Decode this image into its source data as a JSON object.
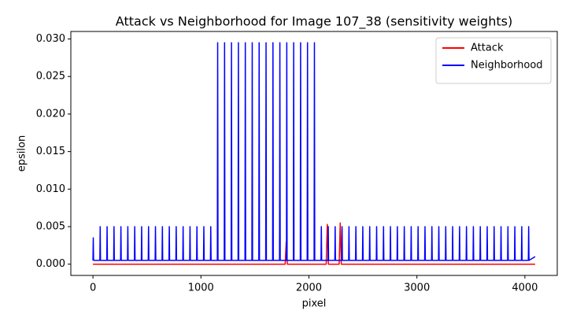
{
  "chart_data": {
    "type": "line",
    "title": "Attack vs Neighborhood for Image 107_38 (sensitivity weights)",
    "x_label": "pixel",
    "y_label": "epsilon",
    "xlim": [
      -204.75,
      4299.75
    ],
    "ylim": [
      -0.0015,
      0.031
    ],
    "xticks": [
      0,
      1000,
      2000,
      3000,
      4000
    ],
    "yticks": [
      {
        "value": 0,
        "label": "0.000"
      },
      {
        "value": 0.005,
        "label": "0.005"
      },
      {
        "value": 0.01,
        "label": "0.010"
      },
      {
        "value": 0.015,
        "label": "0.015"
      },
      {
        "value": 0.02,
        "label": "0.020"
      },
      {
        "value": 0.025,
        "label": "0.025"
      },
      {
        "value": 0.03,
        "label": "0.030"
      }
    ],
    "grid": false,
    "legend": "upper right",
    "series": [
      {
        "name": "Attack",
        "color": "#ff0000",
        "x": [
          0,
          1780,
          1790,
          1800,
          2160,
          2170,
          2180,
          2280,
          2290,
          2300,
          4095
        ],
        "values": [
          0,
          0,
          0.003,
          0,
          0,
          0.0053,
          0,
          0,
          0.0055,
          0,
          0
        ]
      },
      {
        "name": "Neighborhood",
        "color": "#0000ff",
        "x": [
          0,
          3,
          6,
          64,
          67,
          70,
          128,
          131,
          134,
          192,
          195,
          198,
          256,
          259,
          262,
          320,
          323,
          326,
          384,
          387,
          390,
          448,
          451,
          454,
          512,
          515,
          518,
          576,
          579,
          582,
          640,
          643,
          646,
          704,
          707,
          710,
          768,
          771,
          774,
          832,
          835,
          838,
          896,
          899,
          902,
          960,
          963,
          966,
          1024,
          1027,
          1030,
          1088,
          1091,
          1094,
          1152,
          1155,
          1158,
          1216,
          1219,
          1222,
          1280,
          1283,
          1286,
          1344,
          1347,
          1350,
          1408,
          1411,
          1414,
          1472,
          1475,
          1478,
          1536,
          1539,
          1542,
          1600,
          1603,
          1606,
          1664,
          1667,
          1670,
          1728,
          1731,
          1734,
          1792,
          1795,
          1798,
          1856,
          1859,
          1862,
          1920,
          1923,
          1926,
          1984,
          1987,
          1990,
          2048,
          2051,
          2054,
          2112,
          2115,
          2118,
          2176,
          2179,
          2182,
          2240,
          2243,
          2246,
          2304,
          2307,
          2310,
          2368,
          2371,
          2374,
          2432,
          2435,
          2438,
          2496,
          2499,
          2502,
          2560,
          2563,
          2566,
          2624,
          2627,
          2630,
          2688,
          2691,
          2694,
          2752,
          2755,
          2758,
          2816,
          2819,
          2822,
          2880,
          2883,
          2886,
          2944,
          2947,
          2950,
          3008,
          3011,
          3014,
          3072,
          3075,
          3078,
          3136,
          3139,
          3142,
          3200,
          3203,
          3206,
          3264,
          3267,
          3270,
          3328,
          3331,
          3334,
          3392,
          3395,
          3398,
          3456,
          3459,
          3462,
          3520,
          3523,
          3526,
          3584,
          3587,
          3590,
          3648,
          3651,
          3654,
          3712,
          3715,
          3718,
          3776,
          3779,
          3782,
          3840,
          3843,
          3846,
          3904,
          3907,
          3910,
          3968,
          3971,
          3974,
          4032,
          4035,
          4038,
          4095
        ],
        "values": [
          0.0005,
          0.0035,
          0.0005,
          0.0005,
          0.005,
          0.0005,
          0.0005,
          0.005,
          0.0005,
          0.0005,
          0.005,
          0.0005,
          0.0005,
          0.005,
          0.0005,
          0.0005,
          0.005,
          0.0005,
          0.0005,
          0.005,
          0.0005,
          0.0005,
          0.005,
          0.0005,
          0.0005,
          0.005,
          0.0005,
          0.0005,
          0.005,
          0.0005,
          0.0005,
          0.005,
          0.0005,
          0.0005,
          0.005,
          0.0005,
          0.0005,
          0.005,
          0.0005,
          0.0005,
          0.005,
          0.0005,
          0.0005,
          0.005,
          0.0005,
          0.0005,
          0.005,
          0.0005,
          0.0005,
          0.005,
          0.0005,
          0.0005,
          0.005,
          0.0005,
          0.0005,
          0.0295,
          0.0005,
          0.0005,
          0.0295,
          0.0005,
          0.0005,
          0.0295,
          0.0005,
          0.0005,
          0.0295,
          0.0005,
          0.0005,
          0.0295,
          0.0005,
          0.0005,
          0.0295,
          0.0005,
          0.0005,
          0.0295,
          0.0005,
          0.0005,
          0.0295,
          0.0005,
          0.0005,
          0.0295,
          0.0005,
          0.0005,
          0.0295,
          0.0005,
          0.0005,
          0.0295,
          0.0005,
          0.0005,
          0.0295,
          0.0005,
          0.0005,
          0.0295,
          0.0005,
          0.0005,
          0.0295,
          0.0005,
          0.0005,
          0.0295,
          0.0005,
          0.0005,
          0.005,
          0.0005,
          0.0005,
          0.005,
          0.0005,
          0.0005,
          0.005,
          0.0005,
          0.0005,
          0.005,
          0.0005,
          0.0005,
          0.005,
          0.0005,
          0.0005,
          0.005,
          0.0005,
          0.0005,
          0.005,
          0.0005,
          0.0005,
          0.005,
          0.0005,
          0.0005,
          0.005,
          0.0005,
          0.0005,
          0.005,
          0.0005,
          0.0005,
          0.005,
          0.0005,
          0.0005,
          0.005,
          0.0005,
          0.0005,
          0.005,
          0.0005,
          0.0005,
          0.005,
          0.0005,
          0.0005,
          0.005,
          0.0005,
          0.0005,
          0.005,
          0.0005,
          0.0005,
          0.005,
          0.0005,
          0.0005,
          0.005,
          0.0005,
          0.0005,
          0.005,
          0.0005,
          0.0005,
          0.005,
          0.0005,
          0.0005,
          0.005,
          0.0005,
          0.0005,
          0.005,
          0.0005,
          0.0005,
          0.005,
          0.0005,
          0.0005,
          0.005,
          0.0005,
          0.0005,
          0.005,
          0.0005,
          0.0005,
          0.005,
          0.0005,
          0.0005,
          0.005,
          0.0005,
          0.0005,
          0.005,
          0.0005,
          0.0005,
          0.005,
          0.0005,
          0.0005,
          0.005,
          0.0005,
          0.0005,
          0.005,
          0.0005,
          0.001
        ]
      }
    ]
  }
}
